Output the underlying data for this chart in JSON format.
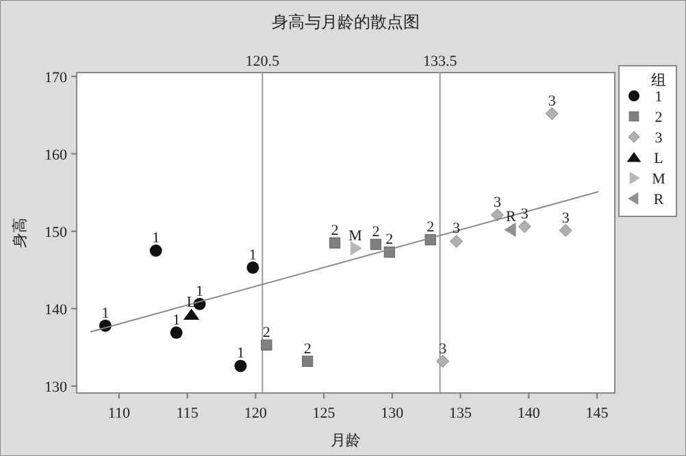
{
  "chart_data": {
    "type": "scatter",
    "title": "身高与月龄的散点图",
    "xlabel": "月龄",
    "ylabel": "身高",
    "legend_title": "组",
    "legend": "right",
    "grid": false,
    "xlim": [
      106.9,
      146.3
    ],
    "ylim": [
      129.1,
      170.5
    ],
    "xticks": [
      110,
      115,
      120,
      125,
      130,
      135,
      140,
      145
    ],
    "yticks": [
      130,
      140,
      150,
      160,
      170
    ],
    "ref_lines": [
      {
        "axis": "x",
        "value": 120.5,
        "label": "120.5",
        "color": "#999999"
      },
      {
        "axis": "x",
        "value": 133.5,
        "label": "133.5",
        "color": "#999999"
      }
    ],
    "series": [
      {
        "name": "1",
        "color": "#111111",
        "marker": "circle",
        "x": [
          109.0,
          112.7,
          114.2,
          115.9,
          119.8,
          118.9
        ],
        "values": [
          137.8,
          147.5,
          136.9,
          140.6,
          145.3,
          132.6
        ]
      },
      {
        "name": "2",
        "color": "#808080",
        "marker": "square",
        "x": [
          120.8,
          123.8,
          125.8,
          128.8,
          129.8,
          132.8
        ],
        "values": [
          135.3,
          133.2,
          148.5,
          148.3,
          147.3,
          148.9
        ]
      },
      {
        "name": "3",
        "color": "#b0b0b0",
        "marker": "diamond",
        "x": [
          133.7,
          134.7,
          137.7,
          139.7,
          141.7,
          142.7
        ],
        "values": [
          133.2,
          148.7,
          152.1,
          150.6,
          165.2,
          150.1
        ]
      },
      {
        "name": "L",
        "color": "#111111",
        "marker": "triangle",
        "x": [
          115.3
        ],
        "values": [
          139.2
        ]
      },
      {
        "name": "M",
        "color": "#b8b8b8",
        "marker": "triangle-right",
        "x": [
          127.3
        ],
        "values": [
          147.8
        ]
      },
      {
        "name": "R",
        "color": "#909090",
        "marker": "triangle-left",
        "x": [
          138.7
        ],
        "values": [
          150.2
        ]
      },
      {
        "type": "line",
        "color": "#888888",
        "x": [
          107.9,
          145.1
        ],
        "values": [
          137.0,
          155.1
        ]
      }
    ],
    "annotations": [
      {
        "text": "1",
        "x": 109.0,
        "y": 137.8
      },
      {
        "text": "1",
        "x": 112.7,
        "y": 147.5
      },
      {
        "text": "1",
        "x": 114.2,
        "y": 136.9
      },
      {
        "text": "1",
        "x": 115.9,
        "y": 140.6
      },
      {
        "text": "1",
        "x": 119.8,
        "y": 145.3
      },
      {
        "text": "1",
        "x": 118.9,
        "y": 132.6
      },
      {
        "text": "2",
        "x": 120.8,
        "y": 135.3
      },
      {
        "text": "2",
        "x": 123.8,
        "y": 133.2
      },
      {
        "text": "2",
        "x": 125.8,
        "y": 148.5
      },
      {
        "text": "2",
        "x": 128.8,
        "y": 148.3
      },
      {
        "text": "2",
        "x": 129.8,
        "y": 147.3
      },
      {
        "text": "2",
        "x": 132.8,
        "y": 148.9
      },
      {
        "text": "3",
        "x": 133.7,
        "y": 133.2
      },
      {
        "text": "3",
        "x": 134.7,
        "y": 148.7
      },
      {
        "text": "3",
        "x": 137.7,
        "y": 152.1
      },
      {
        "text": "3",
        "x": 139.7,
        "y": 150.6
      },
      {
        "text": "3",
        "x": 141.7,
        "y": 165.2
      },
      {
        "text": "3",
        "x": 142.7,
        "y": 150.1
      },
      {
        "text": "L",
        "x": 115.3,
        "y": 139.2
      },
      {
        "text": "M",
        "x": 127.3,
        "y": 147.8
      },
      {
        "text": "R",
        "x": 138.7,
        "y": 150.2
      }
    ]
  }
}
